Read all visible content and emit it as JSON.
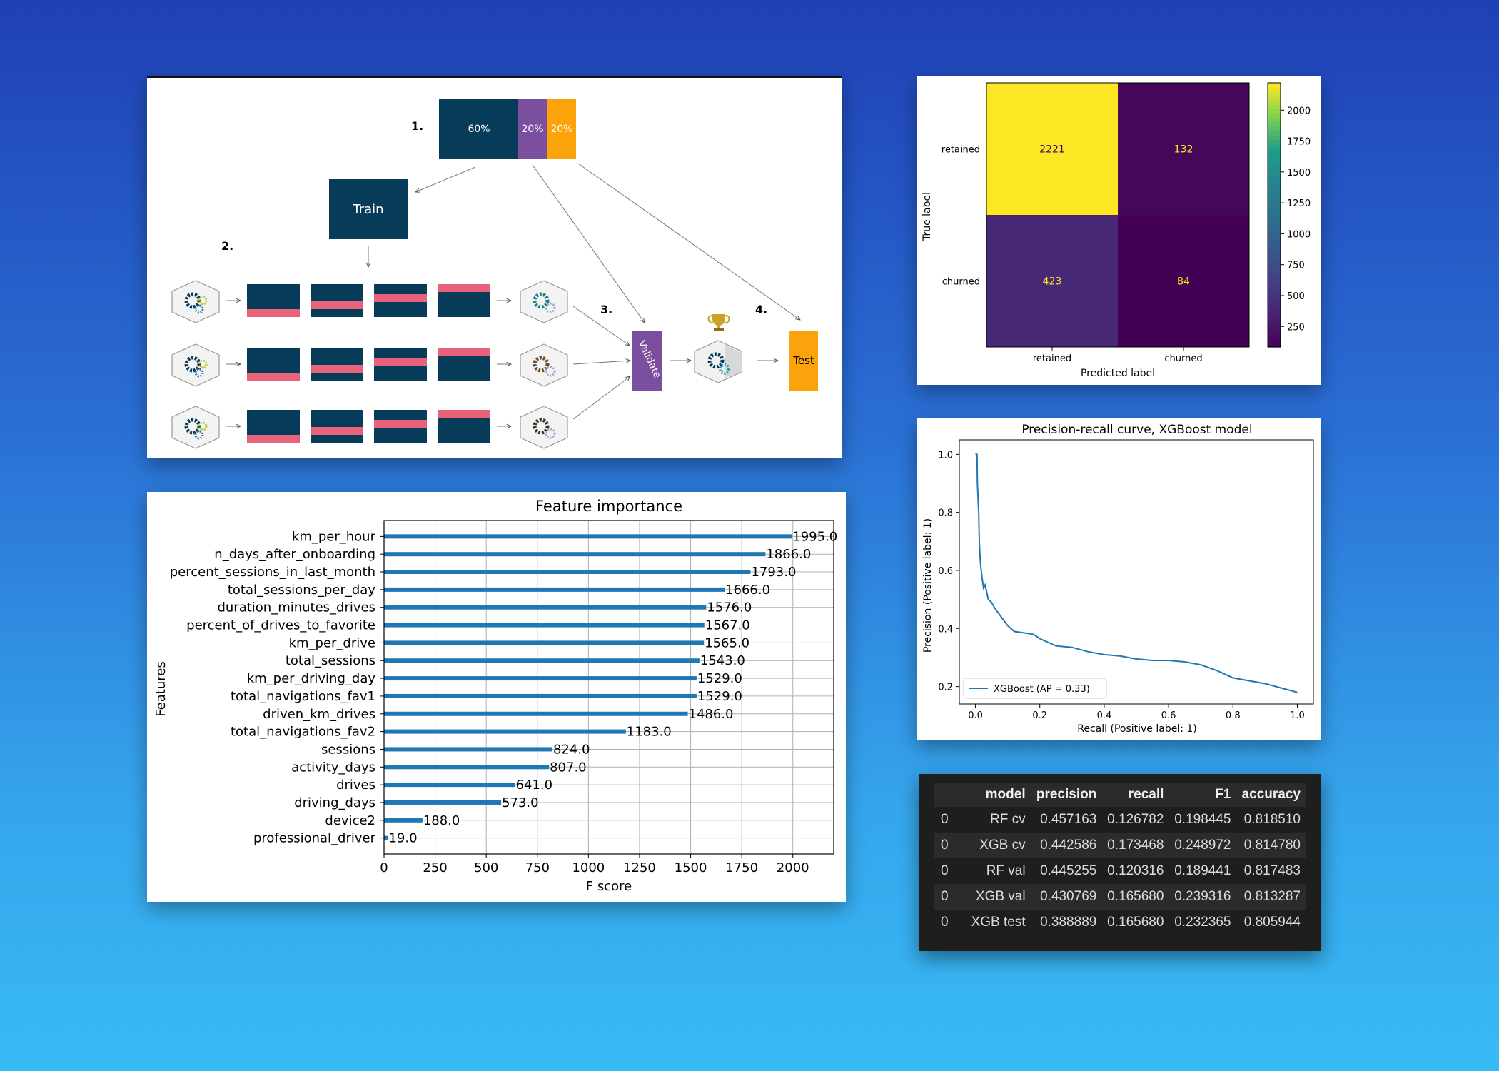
{
  "colors": {
    "navy": "#073b5a",
    "purple": "#7b4f9d",
    "orange": "#fba30b",
    "pink": "#e8637a",
    "bar": "#1f77b4",
    "viridis_low": "#440154",
    "viridis_mid": "#3b528b",
    "viridis_high": "#fde725"
  },
  "diagram": {
    "split_percentages": [
      "60%",
      "20%",
      "20%"
    ],
    "step_labels": [
      "1.",
      "2.",
      "3.",
      "4."
    ],
    "train_label": "Train",
    "validate_label": "Validate",
    "test_label": "Test",
    "icons": [
      "gear-model-icon",
      "trophy-icon",
      "arrow-icon"
    ]
  },
  "chart_data": [
    {
      "type": "heatmap",
      "name_hint": "confusion-matrix",
      "title": "",
      "xlabel": "Predicted label",
      "ylabel": "True label",
      "x_categories": [
        "retained",
        "churned"
      ],
      "y_categories": [
        "retained",
        "churned"
      ],
      "values": [
        [
          2221,
          132
        ],
        [
          423,
          84
        ]
      ],
      "colorbar_ticks": [
        250,
        500,
        750,
        1000,
        1250,
        1500,
        1750,
        2000
      ],
      "colorscale": "viridis",
      "range": [
        84,
        2221
      ]
    },
    {
      "type": "line",
      "name_hint": "precision-recall",
      "title": "Precision-recall curve, XGBoost model",
      "xlabel": "Recall (Positive label: 1)",
      "ylabel": "Precision (Positive label: 1)",
      "xlim": [
        -0.05,
        1.05
      ],
      "ylim": [
        0.14,
        1.05
      ],
      "xticks": [
        "0.0",
        "0.2",
        "0.4",
        "0.6",
        "0.8",
        "1.0"
      ],
      "yticks": [
        "0.2",
        "0.4",
        "0.6",
        "0.8",
        "1.0"
      ],
      "legend": "lower-left",
      "series": [
        {
          "name": "XGBoost (AP = 0.33)",
          "x": [
            0.0,
            0.005,
            0.006,
            0.008,
            0.01,
            0.012,
            0.014,
            0.016,
            0.02,
            0.025,
            0.03,
            0.04,
            0.05,
            0.06,
            0.08,
            0.1,
            0.12,
            0.15,
            0.18,
            0.2,
            0.25,
            0.3,
            0.35,
            0.4,
            0.45,
            0.5,
            0.55,
            0.6,
            0.65,
            0.7,
            0.75,
            0.8,
            0.85,
            0.9,
            0.95,
            1.0
          ],
          "y": [
            1.0,
            1.0,
            0.9,
            0.85,
            0.8,
            0.7,
            0.65,
            0.62,
            0.58,
            0.54,
            0.55,
            0.5,
            0.49,
            0.47,
            0.44,
            0.41,
            0.39,
            0.385,
            0.38,
            0.365,
            0.34,
            0.335,
            0.32,
            0.31,
            0.305,
            0.295,
            0.29,
            0.29,
            0.285,
            0.275,
            0.255,
            0.23,
            0.22,
            0.21,
            0.195,
            0.18
          ]
        }
      ]
    },
    {
      "type": "bar",
      "orientation": "horizontal",
      "name_hint": "feature-importance",
      "title": "Feature importance",
      "xlabel": "F score",
      "ylabel": "Features",
      "xlim": [
        0,
        2200
      ],
      "xticks": [
        "0",
        "250",
        "500",
        "750",
        "1000",
        "1250",
        "1500",
        "1750",
        "2000"
      ],
      "grid": true,
      "categories": [
        "km_per_hour",
        "n_days_after_onboarding",
        "percent_sessions_in_last_month",
        "total_sessions_per_day",
        "duration_minutes_drives",
        "percent_of_drives_to_favorite",
        "km_per_drive",
        "total_sessions",
        "km_per_driving_day",
        "total_navigations_fav1",
        "driven_km_drives",
        "total_navigations_fav2",
        "sessions",
        "activity_days",
        "drives",
        "driving_days",
        "device2",
        "professional_driver"
      ],
      "values": [
        1995.0,
        1866.0,
        1793.0,
        1666.0,
        1576.0,
        1567.0,
        1565.0,
        1543.0,
        1529.0,
        1529.0,
        1486.0,
        1183.0,
        824.0,
        807.0,
        641.0,
        573.0,
        188.0,
        19.0
      ],
      "value_labels": [
        "1995.0",
        "1866.0",
        "1793.0",
        "1666.0",
        "1576.0",
        "1567.0",
        "1565.0",
        "1543.0",
        "1529.0",
        "1529.0",
        "1486.0",
        "1183.0",
        "824.0",
        "807.0",
        "641.0",
        "573.0",
        "188.0",
        "19.0"
      ]
    },
    {
      "type": "table",
      "name_hint": "metrics-table",
      "columns": [
        "",
        "model",
        "precision",
        "recall",
        "F1",
        "accuracy"
      ],
      "rows": [
        [
          "0",
          "RF cv",
          "0.457163",
          "0.126782",
          "0.198445",
          "0.818510"
        ],
        [
          "0",
          "XGB cv",
          "0.442586",
          "0.173468",
          "0.248972",
          "0.814780"
        ],
        [
          "0",
          "RF val",
          "0.445255",
          "0.120316",
          "0.189441",
          "0.817483"
        ],
        [
          "0",
          "XGB val",
          "0.430769",
          "0.165680",
          "0.239316",
          "0.813287"
        ],
        [
          "0",
          "XGB test",
          "0.388889",
          "0.165680",
          "0.232365",
          "0.805944"
        ]
      ]
    }
  ]
}
